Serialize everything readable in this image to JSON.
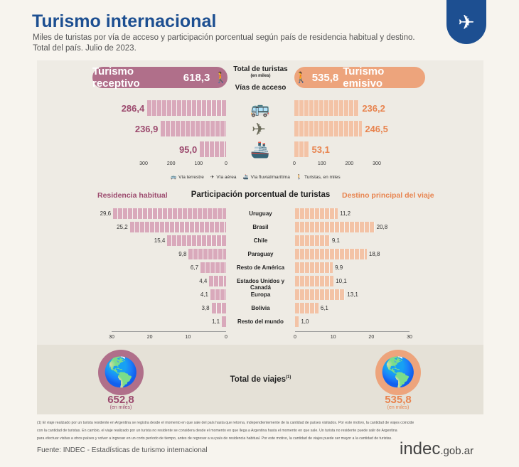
{
  "title": "Turismo internacional",
  "subtitle": "Miles de turistas por vía de acceso y participación porcentual según país de residencia habitual y destino.",
  "subtitle2": "Total del país. Julio de 2023.",
  "receptivo": {
    "label": "Turismo receptivo",
    "value": "618,3"
  },
  "emisivo": {
    "label": "Turismo emisivo",
    "value": "535,8"
  },
  "center": {
    "total": "Total de turistas",
    "en_miles": "(en miles)",
    "vias": "Vías de acceso",
    "participacion": "Participación porcentual de turistas",
    "residencia": "Residencia habitual",
    "destino": "Destino principal del viaje",
    "viajes": "Total de viajes",
    "viajes_sup": "(1)"
  },
  "legend": [
    "Vía terrestre",
    "Vía aérea",
    "Vía fluvial/marítima",
    "Turistas, en miles"
  ],
  "colors": {
    "receptivo": "#b06f8a",
    "emisivo": "#eda47c",
    "brand": "#1d4f91"
  },
  "chart_data": [
    {
      "type": "bar",
      "title": "Vías de acceso",
      "categories": [
        "Vía terrestre",
        "Vía aérea",
        "Vía fluvial/marítima"
      ],
      "series": [
        {
          "name": "Turismo receptivo",
          "values": [
            286.4,
            236.9,
            95.0
          ],
          "labels": [
            "286,4",
            "236,9",
            "95,0"
          ]
        },
        {
          "name": "Turismo emisivo",
          "values": [
            236.2,
            246.5,
            53.1
          ],
          "labels": [
            "236,2",
            "246,5",
            "53,1"
          ]
        }
      ],
      "ticks": [
        "0",
        "100",
        "200",
        "300"
      ],
      "xlim": [
        0,
        300
      ]
    },
    {
      "type": "bar",
      "title": "Participación porcentual de turistas",
      "categories": [
        "Uruguay",
        "Brasil",
        "Chile",
        "Paraguay",
        "Resto de América",
        "Estados Unidos y Canadá",
        "Europa",
        "Bolivia",
        "Resto del mundo"
      ],
      "series": [
        {
          "name": "Residencia habitual",
          "values": [
            29.6,
            25.2,
            15.4,
            9.8,
            6.7,
            4.4,
            4.1,
            3.8,
            1.1
          ],
          "labels": [
            "29,6",
            "25,2",
            "15,4",
            "9,8",
            "6,7",
            "4,4",
            "4,1",
            "3,8",
            "1,1"
          ]
        },
        {
          "name": "Destino principal del viaje",
          "values": [
            11.2,
            20.8,
            9.1,
            18.8,
            9.9,
            10.1,
            13.1,
            6.1,
            1.0
          ],
          "labels": [
            "11,2",
            "20,8",
            "9,1",
            "18,8",
            "9,9",
            "10,1",
            "13,1",
            "6,1",
            "1,0"
          ]
        }
      ],
      "ticks": [
        "0",
        "10",
        "20",
        "30"
      ],
      "xlim": [
        0,
        30
      ]
    }
  ],
  "viajes": {
    "receptivo": "652,8",
    "emisivo": "535,8",
    "unit": "(en miles)"
  },
  "footnote": [
    "(1) El viaje realizado por un turista residente en Argentina se registra desde el momento en que sale del país hasta que retorna, independientemente de la cantidad de países visitados. Por este motivo, la cantidad de viajes coincide",
    "con la cantidad de turistas. En cambio, el viaje realizado por un turista no residente se considera desde el momento en que llega a Argentina hasta el momento en que sale. Un turista no residente puede salir de Argentina",
    "para efectuar visitas a otros países y volver a ingresar en un corto período de tiempo,  antes de regresar a su país de residencia habitual. Por este motivo, la cantidad de viajes puede ser mayor a la cantidad de turistas."
  ],
  "source": "Fuente: INDEC - Estadísticas de turismo internacional",
  "brand": {
    "main": "indec",
    "suffix": ".gob.ar"
  }
}
